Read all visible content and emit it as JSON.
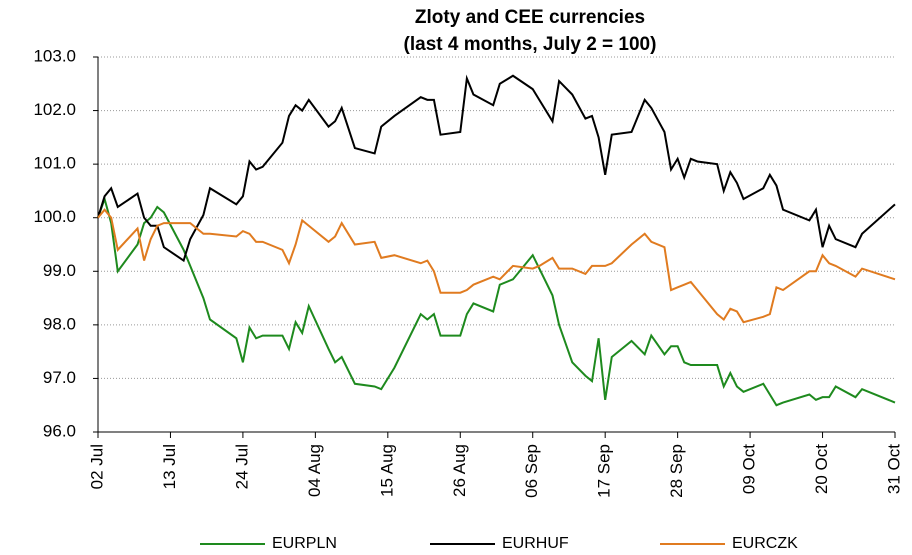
{
  "chart_data": {
    "type": "line",
    "title": "Zloty and CEE currencies",
    "subtitle": "(last 4 months, July 2 = 100)",
    "x": [
      0,
      1,
      2,
      3,
      6,
      7,
      8,
      9,
      10,
      13,
      14,
      16,
      17,
      21,
      22,
      23,
      24,
      25,
      28,
      29,
      30,
      31,
      32,
      35,
      36,
      37,
      39,
      42,
      43,
      45,
      49,
      50,
      51,
      52,
      55,
      56,
      57,
      60,
      61,
      63,
      66,
      67,
      69,
      70,
      72,
      74,
      75,
      76,
      77,
      78,
      81,
      83,
      84,
      86,
      87,
      88,
      89,
      90,
      91,
      94,
      95,
      96,
      97,
      98,
      101,
      102,
      103,
      104,
      108,
      109,
      110,
      111,
      112,
      115,
      116,
      121
    ],
    "series": [
      {
        "name": "EURPLN",
        "color": "#1e8a1e",
        "values": [
          100.0,
          100.35,
          99.9,
          99.0,
          99.5,
          99.9,
          100.0,
          100.2,
          100.1,
          99.4,
          99.1,
          98.5,
          98.1,
          97.75,
          97.3,
          97.95,
          97.75,
          97.8,
          97.8,
          97.55,
          98.05,
          97.85,
          98.35,
          97.55,
          97.3,
          97.4,
          96.9,
          96.85,
          96.8,
          97.2,
          98.2,
          98.1,
          98.2,
          97.8,
          97.8,
          98.2,
          98.4,
          98.25,
          98.75,
          98.85,
          99.3,
          99.05,
          98.55,
          98.0,
          97.3,
          97.05,
          96.95,
          97.75,
          96.6,
          97.4,
          97.7,
          97.45,
          97.8,
          97.45,
          97.6,
          97.6,
          97.3,
          97.25,
          97.25,
          97.25,
          96.85,
          97.1,
          96.85,
          96.75,
          96.9,
          96.7,
          96.5,
          96.55,
          96.7,
          96.6,
          96.65,
          96.65,
          96.85,
          96.65,
          96.8,
          96.55
        ]
      },
      {
        "name": "EURHUF",
        "color": "#000000",
        "values": [
          100.0,
          100.4,
          100.55,
          100.2,
          100.45,
          100.0,
          99.85,
          99.85,
          99.45,
          99.2,
          99.6,
          100.05,
          100.55,
          100.25,
          100.4,
          101.05,
          100.9,
          100.95,
          101.4,
          101.9,
          102.1,
          102.0,
          102.2,
          101.7,
          101.8,
          102.05,
          101.3,
          101.2,
          101.7,
          101.9,
          102.25,
          102.2,
          102.2,
          101.55,
          101.6,
          102.6,
          102.3,
          102.1,
          102.5,
          102.65,
          102.4,
          102.2,
          101.8,
          102.55,
          102.3,
          101.85,
          101.9,
          101.5,
          100.8,
          101.55,
          101.6,
          102.2,
          102.05,
          101.6,
          100.9,
          101.1,
          100.75,
          101.1,
          101.05,
          101.0,
          100.5,
          100.85,
          100.65,
          100.35,
          100.55,
          100.8,
          100.6,
          100.15,
          99.95,
          100.15,
          99.45,
          99.85,
          99.6,
          99.45,
          99.7,
          100.25
        ]
      },
      {
        "name": "EURCZK",
        "color": "#e07b20",
        "values": [
          100.0,
          100.15,
          100.0,
          99.4,
          99.8,
          99.2,
          99.6,
          99.85,
          99.9,
          99.9,
          99.9,
          99.7,
          99.7,
          99.65,
          99.75,
          99.7,
          99.55,
          99.55,
          99.4,
          99.15,
          99.5,
          99.95,
          99.85,
          99.55,
          99.65,
          99.9,
          99.5,
          99.55,
          99.25,
          99.3,
          99.15,
          99.2,
          99.0,
          98.6,
          98.6,
          98.65,
          98.75,
          98.9,
          98.85,
          99.1,
          99.05,
          99.1,
          99.25,
          99.05,
          99.05,
          98.95,
          99.1,
          99.1,
          99.1,
          99.15,
          99.5,
          99.7,
          99.55,
          99.45,
          98.65,
          98.7,
          98.75,
          98.8,
          98.65,
          98.2,
          98.1,
          98.3,
          98.25,
          98.05,
          98.15,
          98.2,
          98.7,
          98.65,
          99.0,
          99.0,
          99.3,
          99.15,
          99.1,
          98.9,
          99.05,
          98.85
        ]
      }
    ],
    "xlim": [
      0,
      121
    ],
    "xticks": [
      {
        "value": 0,
        "label": "02 Jul"
      },
      {
        "value": 11,
        "label": "13 Jul"
      },
      {
        "value": 22,
        "label": "24 Jul"
      },
      {
        "value": 33,
        "label": "04 Aug"
      },
      {
        "value": 44,
        "label": "15 Aug"
      },
      {
        "value": 55,
        "label": "26 Aug"
      },
      {
        "value": 66,
        "label": "06 Sep"
      },
      {
        "value": 77,
        "label": "17 Sep"
      },
      {
        "value": 88,
        "label": "28 Sep"
      },
      {
        "value": 99,
        "label": "09 Oct"
      },
      {
        "value": 110,
        "label": "20 Oct"
      },
      {
        "value": 121,
        "label": "31 Oct"
      }
    ],
    "ylim": [
      96,
      103
    ],
    "yticks": [
      {
        "value": 96,
        "label": "96.0"
      },
      {
        "value": 97,
        "label": "97.0"
      },
      {
        "value": 98,
        "label": "98.0"
      },
      {
        "value": 99,
        "label": "99.0"
      },
      {
        "value": 100,
        "label": "100.0"
      },
      {
        "value": 101,
        "label": "101.0"
      },
      {
        "value": 102,
        "label": "102.0"
      },
      {
        "value": 103,
        "label": "103.0"
      }
    ],
    "grid": true,
    "legend": "bottom"
  }
}
